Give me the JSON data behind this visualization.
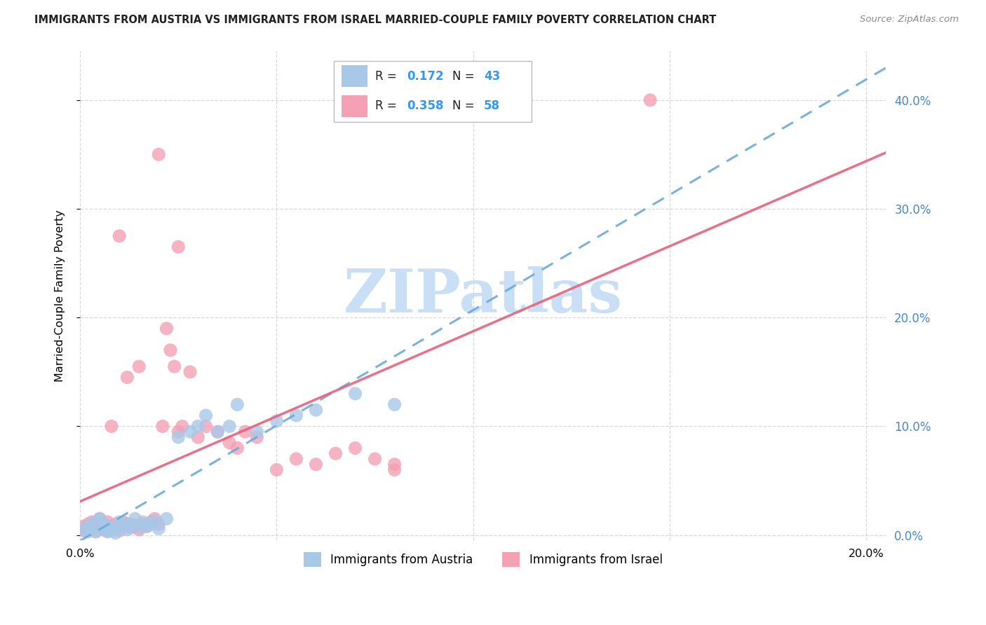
{
  "title": "IMMIGRANTS FROM AUSTRIA VS IMMIGRANTS FROM ISRAEL MARRIED-COUPLE FAMILY POVERTY CORRELATION CHART",
  "source": "Source: ZipAtlas.com",
  "ylabel": "Married-Couple Family Poverty",
  "legend_label1": "Immigrants from Austria",
  "legend_label2": "Immigrants from Israel",
  "R1": 0.172,
  "N1": 43,
  "R2": 0.358,
  "N2": 58,
  "xlim": [
    0.0,
    0.205
  ],
  "ylim": [
    -0.005,
    0.445
  ],
  "xtick_vals": [
    0.0,
    0.05,
    0.1,
    0.15,
    0.2
  ],
  "ytick_vals": [
    0.0,
    0.1,
    0.2,
    0.3,
    0.4
  ],
  "color_austria": "#a8c8e8",
  "color_israel": "#f4a0b5",
  "color_line_austria": "#6aaad8",
  "color_line_israel": "#e8607a",
  "watermark_color": "#c8dff5",
  "grid_color": "#d8d8d8",
  "right_label_color": "#4488cc",
  "austria_x": [
    0.001,
    0.002,
    0.002,
    0.003,
    0.003,
    0.004,
    0.004,
    0.005,
    0.005,
    0.006,
    0.006,
    0.007,
    0.007,
    0.008,
    0.008,
    0.009,
    0.01,
    0.01,
    0.011,
    0.012,
    0.012,
    0.013,
    0.014,
    0.015,
    0.016,
    0.017,
    0.018,
    0.019,
    0.02,
    0.022,
    0.025,
    0.028,
    0.03,
    0.032,
    0.035,
    0.038,
    0.04,
    0.045,
    0.05,
    0.055,
    0.06,
    0.07,
    0.08
  ],
  "austria_y": [
    0.005,
    0.003,
    0.008,
    0.006,
    0.01,
    0.004,
    0.012,
    0.007,
    0.015,
    0.005,
    0.01,
    0.003,
    0.008,
    0.006,
    0.004,
    0.002,
    0.007,
    0.012,
    0.01,
    0.005,
    0.008,
    0.01,
    0.015,
    0.007,
    0.012,
    0.008,
    0.01,
    0.013,
    0.006,
    0.015,
    0.09,
    0.095,
    0.1,
    0.11,
    0.095,
    0.1,
    0.12,
    0.095,
    0.105,
    0.11,
    0.115,
    0.13,
    0.12
  ],
  "israel_x": [
    0.001,
    0.001,
    0.002,
    0.002,
    0.003,
    0.003,
    0.004,
    0.004,
    0.005,
    0.005,
    0.006,
    0.006,
    0.007,
    0.007,
    0.008,
    0.008,
    0.009,
    0.01,
    0.01,
    0.011,
    0.012,
    0.013,
    0.014,
    0.015,
    0.016,
    0.017,
    0.018,
    0.019,
    0.02,
    0.021,
    0.022,
    0.023,
    0.024,
    0.025,
    0.026,
    0.028,
    0.03,
    0.032,
    0.035,
    0.038,
    0.04,
    0.042,
    0.045,
    0.05,
    0.055,
    0.06,
    0.065,
    0.07,
    0.075,
    0.08,
    0.02,
    0.025,
    0.01,
    0.015,
    0.012,
    0.008,
    0.145,
    0.08
  ],
  "israel_y": [
    0.004,
    0.008,
    0.005,
    0.01,
    0.006,
    0.012,
    0.003,
    0.008,
    0.007,
    0.015,
    0.005,
    0.01,
    0.004,
    0.012,
    0.006,
    0.008,
    0.01,
    0.004,
    0.008,
    0.012,
    0.01,
    0.007,
    0.009,
    0.005,
    0.01,
    0.008,
    0.012,
    0.015,
    0.01,
    0.1,
    0.19,
    0.17,
    0.155,
    0.095,
    0.1,
    0.15,
    0.09,
    0.1,
    0.095,
    0.085,
    0.08,
    0.095,
    0.09,
    0.06,
    0.07,
    0.065,
    0.075,
    0.08,
    0.07,
    0.065,
    0.35,
    0.265,
    0.275,
    0.155,
    0.145,
    0.1,
    0.4,
    0.06
  ]
}
